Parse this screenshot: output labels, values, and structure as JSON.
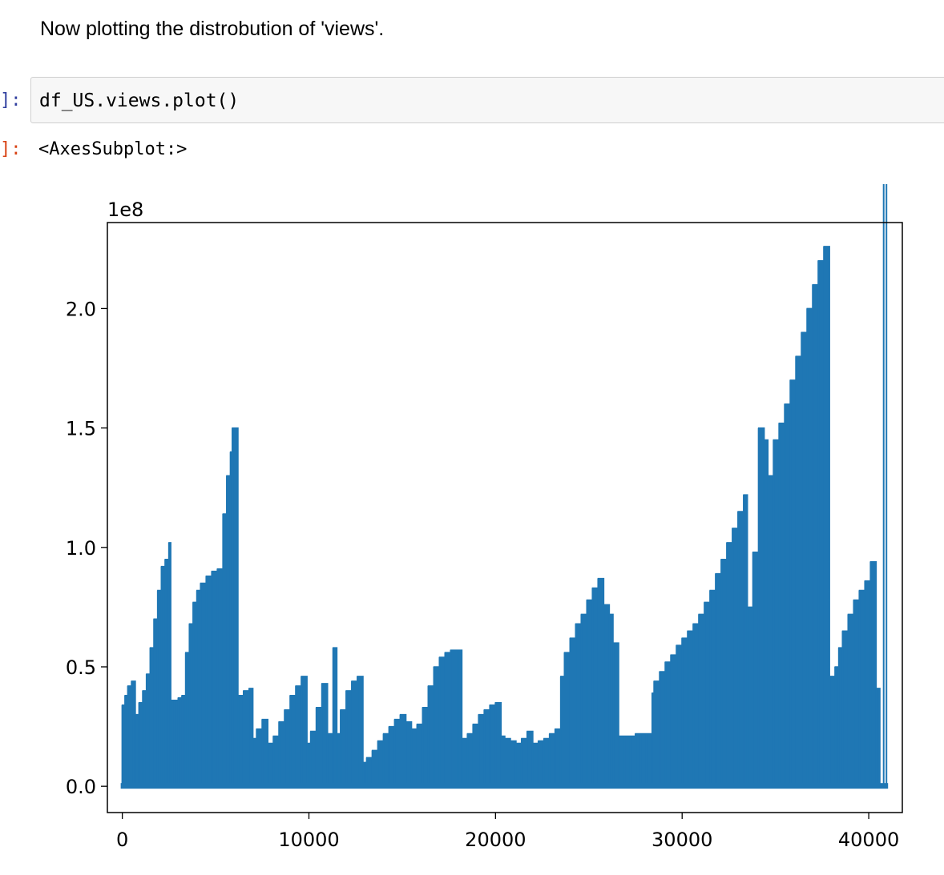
{
  "markdown": {
    "text": "Now plotting the distrobution of 'views'."
  },
  "input_cell": {
    "prompt": "]:",
    "code": "df_US.views.plot()"
  },
  "output_cell": {
    "prompt": "]:",
    "text": "<AxesSubplot:>"
  },
  "colors": {
    "line": "#1f77b4",
    "in_prompt": "#303f9f",
    "out_prompt": "#d84315"
  },
  "chart_data": {
    "type": "line",
    "title": "",
    "xlabel": "",
    "ylabel": "",
    "y_offset_label": "1e8",
    "xlim": [
      -800,
      41800
    ],
    "ylim": [
      -0.11,
      2.36
    ],
    "x_ticks": [
      0,
      10000,
      20000,
      30000,
      40000
    ],
    "x_tick_labels": [
      "0",
      "10000",
      "20000",
      "30000",
      "40000"
    ],
    "y_ticks": [
      0.0,
      0.5,
      1.0,
      1.5,
      2.0
    ],
    "y_tick_labels": [
      "0.0",
      "0.5",
      "1.0",
      "1.5",
      "2.0"
    ],
    "grid": false,
    "series": [
      {
        "envelope_x": [
          0,
          150,
          300,
          500,
          700,
          900,
          1100,
          1300,
          1500,
          1700,
          1900,
          2100,
          2300,
          2500,
          2600,
          2800,
          3000,
          3200,
          3400,
          3600,
          3800,
          4000,
          4200,
          4500,
          4800,
          5100,
          5400,
          5600,
          5800,
          5900,
          6100,
          6200,
          6500,
          6800,
          7000,
          7200,
          7500,
          7800,
          8100,
          8400,
          8700,
          9000,
          9300,
          9600,
          9900,
          10100,
          10400,
          10700,
          11000,
          11300,
          11500,
          11700,
          12000,
          12300,
          12600,
          12900,
          13100,
          13400,
          13700,
          14000,
          14300,
          14600,
          14900,
          15200,
          15500,
          15800,
          16100,
          16400,
          16700,
          17000,
          17300,
          17600,
          18000,
          18200,
          18500,
          18800,
          19100,
          19400,
          19700,
          20000,
          20300,
          20500,
          20800,
          21100,
          21400,
          21700,
          22000,
          22300,
          22600,
          22900,
          23200,
          23500,
          23700,
          24000,
          24300,
          24600,
          24900,
          25200,
          25500,
          25800,
          26100,
          26300,
          26600,
          26900,
          27200,
          27500,
          27800,
          28100,
          28400,
          28500,
          28800,
          29100,
          29400,
          29700,
          30000,
          30300,
          30600,
          30900,
          31200,
          31500,
          31800,
          32100,
          32400,
          32700,
          33000,
          33300,
          33500,
          33800,
          34100,
          34400,
          34600,
          34900,
          35200,
          35500,
          35800,
          36100,
          36400,
          36700,
          37000,
          37300,
          37600,
          37900,
          38200,
          38400,
          38600,
          38900,
          39200,
          39500,
          39800,
          40100,
          40400,
          40600,
          40800,
          40950
        ],
        "envelope_y": [
          0.34,
          0.38,
          0.42,
          0.44,
          0.3,
          0.35,
          0.4,
          0.47,
          0.58,
          0.7,
          0.82,
          0.92,
          0.95,
          1.02,
          0.36,
          0.36,
          0.37,
          0.38,
          0.56,
          0.68,
          0.77,
          0.82,
          0.85,
          0.88,
          0.9,
          0.91,
          1.14,
          1.3,
          1.4,
          1.5,
          1.5,
          0.38,
          0.4,
          0.41,
          0.2,
          0.24,
          0.28,
          0.18,
          0.21,
          0.27,
          0.32,
          0.38,
          0.42,
          0.46,
          0.18,
          0.23,
          0.33,
          0.43,
          0.22,
          0.58,
          0.22,
          0.32,
          0.4,
          0.44,
          0.46,
          0.1,
          0.12,
          0.15,
          0.19,
          0.22,
          0.25,
          0.28,
          0.3,
          0.27,
          0.24,
          0.26,
          0.33,
          0.42,
          0.5,
          0.54,
          0.56,
          0.57,
          0.57,
          0.2,
          0.22,
          0.26,
          0.3,
          0.32,
          0.34,
          0.35,
          0.21,
          0.2,
          0.19,
          0.18,
          0.2,
          0.23,
          0.18,
          0.19,
          0.2,
          0.22,
          0.24,
          0.46,
          0.56,
          0.62,
          0.68,
          0.72,
          0.78,
          0.83,
          0.87,
          0.76,
          0.72,
          0.6,
          0.21,
          0.21,
          0.21,
          0.22,
          0.22,
          0.22,
          0.39,
          0.44,
          0.48,
          0.52,
          0.55,
          0.59,
          0.62,
          0.65,
          0.68,
          0.72,
          0.77,
          0.82,
          0.89,
          0.95,
          1.02,
          1.08,
          1.15,
          1.22,
          0.75,
          0.98,
          1.5,
          1.45,
          1.3,
          1.45,
          1.52,
          1.6,
          1.7,
          1.8,
          1.9,
          2.0,
          2.1,
          2.2,
          2.26,
          0.46,
          0.5,
          0.58,
          0.65,
          0.72,
          0.78,
          0.82,
          0.86,
          0.94,
          0.41,
          0.0
        ]
      }
    ]
  }
}
